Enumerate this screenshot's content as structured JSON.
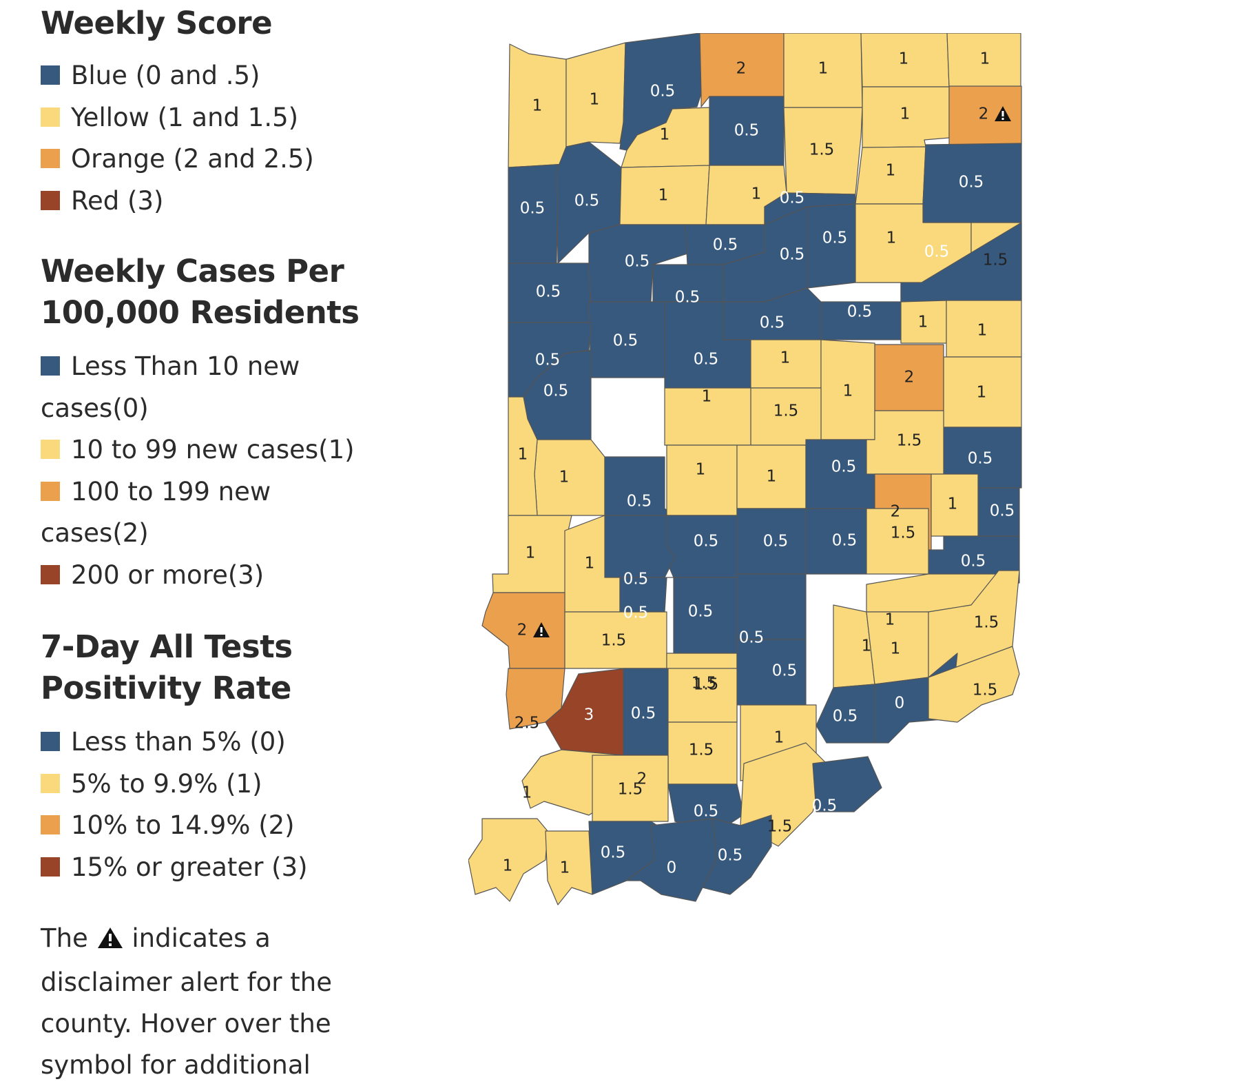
{
  "colors": {
    "blue": "#37597d",
    "yellow": "#f9d97b",
    "orange": "#eba04e",
    "red": "#974428"
  },
  "legend": {
    "weekly_score": {
      "title": "Weekly Score",
      "items": [
        {
          "label": "Blue (0 and .5)",
          "color": "#37597d"
        },
        {
          "label": "Yellow (1 and 1.5)",
          "color": "#f9d97b"
        },
        {
          "label": "Orange (2 and 2.5)",
          "color": "#eba04e"
        },
        {
          "label": "Red (3)",
          "color": "#974428"
        }
      ]
    },
    "weekly_cases": {
      "title_line1": "Weekly Cases Per",
      "title_line2": "100,000 Residents",
      "items": [
        {
          "label_line1": "Less Than 10 new",
          "label_line2": "cases(0)",
          "color": "#37597d"
        },
        {
          "label_line1": "10 to 99 new cases(1)",
          "label_line2": "",
          "color": "#f9d97b"
        },
        {
          "label_line1": "100 to 199 new",
          "label_line2": "cases(2)",
          "color": "#eba04e"
        },
        {
          "label_line1": "200 or more(3)",
          "label_line2": "",
          "color": "#974428"
        }
      ]
    },
    "positivity": {
      "title_line1": "7-Day All Tests",
      "title_line2": "Positivity Rate",
      "items": [
        {
          "label": "Less than 5% (0)",
          "color": "#37597d"
        },
        {
          "label": "5% to 9.9% (1)",
          "color": "#f9d97b"
        },
        {
          "label": "10% to 14.9% (2)",
          "color": "#eba04e"
        },
        {
          "label": "15% or greater (3)",
          "color": "#974428"
        }
      ]
    },
    "note": {
      "prefix": "The",
      "line1_suffix": "indicates a",
      "line2": "disclaimer alert for the",
      "line3": "county. Hover over the",
      "line4": "symbol for additional"
    }
  },
  "map": {
    "icon": "warning-triangle-icon",
    "counties": [
      {
        "score": "1",
        "alert": false
      },
      {
        "score": "1",
        "alert": false
      },
      {
        "score": "0.5",
        "alert": false
      },
      {
        "score": "2",
        "alert": false
      },
      {
        "score": "1",
        "alert": false
      },
      {
        "score": "1",
        "alert": false
      },
      {
        "score": "1",
        "alert": false
      },
      {
        "score": "1",
        "alert": false
      },
      {
        "score": "0.5",
        "alert": false
      },
      {
        "score": "1.5",
        "alert": false
      },
      {
        "score": "1",
        "alert": false
      },
      {
        "score": "2",
        "alert": true
      },
      {
        "score": "1",
        "alert": false
      },
      {
        "score": "0.5",
        "alert": false
      },
      {
        "score": "0.5",
        "alert": false
      },
      {
        "score": "0.5",
        "alert": false
      },
      {
        "score": "1",
        "alert": false
      },
      {
        "score": "1",
        "alert": false
      },
      {
        "score": "0.5",
        "alert": false
      },
      {
        "score": "0.5",
        "alert": false
      },
      {
        "score": "0.5",
        "alert": false
      },
      {
        "score": "0.5",
        "alert": false
      },
      {
        "score": "0.5",
        "alert": false
      },
      {
        "score": "1",
        "alert": false
      },
      {
        "score": "1.5",
        "alert": false
      },
      {
        "score": "0.5",
        "alert": false
      },
      {
        "score": "0.5",
        "alert": false
      },
      {
        "score": "0.5",
        "alert": false
      },
      {
        "score": "0.5",
        "alert": false
      },
      {
        "score": "0.5",
        "alert": false
      },
      {
        "score": "1",
        "alert": false
      },
      {
        "score": "1",
        "alert": false
      },
      {
        "score": "0.5",
        "alert": false
      },
      {
        "score": "0.5",
        "alert": false
      },
      {
        "score": "1",
        "alert": false
      },
      {
        "score": "2",
        "alert": false
      },
      {
        "score": "1",
        "alert": false
      },
      {
        "score": "0.5",
        "alert": false
      },
      {
        "score": "0.5",
        "alert": false
      },
      {
        "score": "1.5",
        "alert": false
      },
      {
        "score": "1",
        "alert": false
      },
      {
        "score": "1",
        "alert": false
      },
      {
        "score": "0.5",
        "alert": false
      },
      {
        "score": "1",
        "alert": false
      },
      {
        "score": "0.5",
        "alert": false
      },
      {
        "score": "1",
        "alert": false
      },
      {
        "score": "1",
        "alert": false
      },
      {
        "score": "1",
        "alert": false
      },
      {
        "score": "0.5",
        "alert": false
      },
      {
        "score": "1.5",
        "alert": false
      },
      {
        "score": "0.5",
        "alert": false
      },
      {
        "score": "2",
        "alert": false
      },
      {
        "score": "1",
        "alert": false
      },
      {
        "score": "0.5",
        "alert": false
      },
      {
        "score": "0.5",
        "alert": false
      },
      {
        "score": "0.5",
        "alert": false
      },
      {
        "score": "0.5",
        "alert": false
      },
      {
        "score": "1.5",
        "alert": false
      },
      {
        "score": "0.5",
        "alert": false
      },
      {
        "score": "1",
        "alert": false
      },
      {
        "score": "1",
        "alert": false
      },
      {
        "score": "0.5",
        "alert": false
      },
      {
        "score": "1",
        "alert": false
      },
      {
        "score": "0.5",
        "alert": false
      },
      {
        "score": "0.5",
        "alert": false
      },
      {
        "score": "2",
        "alert": true
      },
      {
        "score": "1.5",
        "alert": false
      },
      {
        "score": "1.5",
        "alert": false
      },
      {
        "score": "0.5",
        "alert": false
      },
      {
        "score": "1",
        "alert": false
      },
      {
        "score": "1",
        "alert": false
      },
      {
        "score": "1.5",
        "alert": false
      },
      {
        "score": "2.5",
        "alert": false
      },
      {
        "score": "3",
        "alert": false
      },
      {
        "score": "0.5",
        "alert": false
      },
      {
        "score": "0.5",
        "alert": false
      },
      {
        "score": "0",
        "alert": false
      },
      {
        "score": "1.5",
        "alert": false
      },
      {
        "score": "1.5",
        "alert": false
      },
      {
        "score": "1.5",
        "alert": false
      },
      {
        "score": "1",
        "alert": false
      },
      {
        "score": "1",
        "alert": false
      },
      {
        "score": "2",
        "alert": false
      },
      {
        "score": "1.5",
        "alert": false
      },
      {
        "score": "0.5",
        "alert": false
      },
      {
        "score": "1.5",
        "alert": false
      },
      {
        "score": "0.5",
        "alert": false
      },
      {
        "score": "1",
        "alert": false
      },
      {
        "score": "1",
        "alert": false
      },
      {
        "score": "0.5",
        "alert": false
      },
      {
        "score": "0",
        "alert": false
      },
      {
        "score": "0.5",
        "alert": false
      }
    ]
  }
}
